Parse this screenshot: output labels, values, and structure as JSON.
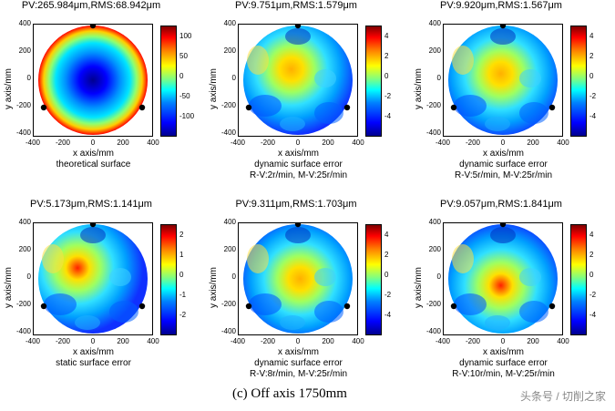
{
  "panels": [
    {
      "title": "PV:265.984μm,RMS:68.942μm",
      "y_label": "y axis/mm",
      "x_label": "x axis/mm",
      "caption_line1": "theoretical surface",
      "caption_line2": "",
      "colorbar_ticks": [
        "100",
        "50",
        "0",
        "-50",
        "-100"
      ],
      "surface": "bowl"
    },
    {
      "title": "PV:9.751μm,RMS:1.579μm",
      "y_label": "y axis/mm",
      "x_label": "x axis/mm",
      "caption_line1": "dynamic surface error",
      "caption_line2": "R-V:2r/min, M-V:25r/min",
      "colorbar_ticks": [
        "4",
        "2",
        "0",
        "-2",
        "-4"
      ],
      "surface": "error"
    },
    {
      "title": "PV:9.920μm,RMS:1.567μm",
      "y_label": "y axis/mm",
      "x_label": "x axis/mm",
      "caption_line1": "dynamic surface error",
      "caption_line2": "R-V:5r/min, M-V:25r/min",
      "colorbar_ticks": [
        "4",
        "2",
        "0",
        "-2",
        "-4"
      ],
      "surface": "error"
    },
    {
      "title": "PV:5.173μm,RMS:1.141μm",
      "y_label": "y axis/mm",
      "x_label": "x axis/mm",
      "caption_line1": "static surface error",
      "caption_line2": "",
      "colorbar_ticks": [
        "2",
        "1",
        "0",
        "-1",
        "-2"
      ],
      "surface": "error"
    },
    {
      "title": "PV:9.311μm,RMS:1.703μm",
      "y_label": "y axis/mm",
      "x_label": "x axis/mm",
      "caption_line1": "dynamic surface error",
      "caption_line2": "R-V:8r/min, M-V:25r/min",
      "colorbar_ticks": [
        "4",
        "2",
        "0",
        "-2",
        "-4"
      ],
      "surface": "error"
    },
    {
      "title": "PV:9.057μm,RMS:1.841μm",
      "y_label": "y axis/mm",
      "x_label": "x axis/mm",
      "caption_line1": "dynamic surface error",
      "caption_line2": "R-V:10r/min, M-V:25r/min",
      "colorbar_ticks": [
        "4",
        "2",
        "0",
        "-2",
        "-4"
      ],
      "surface": "error"
    }
  ],
  "axis_ticks": {
    "y": [
      "400",
      "200",
      "0",
      "-200",
      "-400"
    ],
    "x": [
      "-400",
      "-200",
      "0",
      "200",
      "400"
    ]
  },
  "figure_caption": "(c)   Off axis 1750mm",
  "watermark": "头条号 / 切削之家"
}
